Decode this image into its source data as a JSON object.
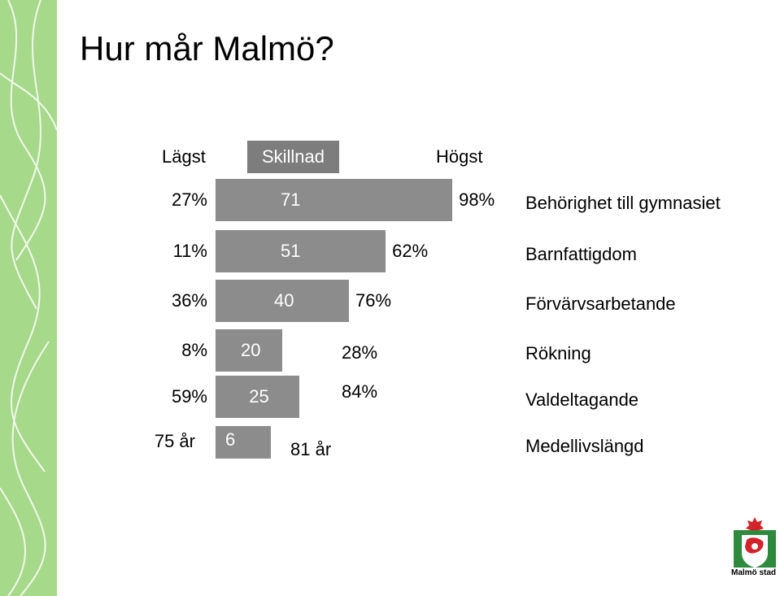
{
  "title": "Hur mår Malmö?",
  "headers": {
    "low": "Lägst",
    "diff": "Skillnad",
    "high": "Högst"
  },
  "chart_data": {
    "type": "bar",
    "rows": [
      {
        "name": "Behörighet till gymnasiet",
        "low": "27%",
        "diff": 71,
        "high": "98%"
      },
      {
        "name": "Barnfattigdom",
        "low": "11%",
        "diff": 51,
        "high": "62%"
      },
      {
        "name": "Förvärvsarbetande",
        "low": "36%",
        "diff": 40,
        "high": "76%"
      },
      {
        "name": "Rökning",
        "low": "8%",
        "diff": 20,
        "high": "28%"
      },
      {
        "name": "Valdeltagande",
        "low": "59%",
        "diff": 25,
        "high": "84%"
      },
      {
        "name": "Medellivslängd",
        "low": "75 år",
        "diff": 6,
        "high": "81 år"
      }
    ]
  },
  "logo": {
    "text": "Malmö stad",
    "colors": {
      "green": "#2e8b3d",
      "red": "#d2232a"
    }
  },
  "colors": {
    "sidebar": "#a6d98a",
    "bar": "#8c8c8c",
    "header_box": "#7d7d7d"
  }
}
